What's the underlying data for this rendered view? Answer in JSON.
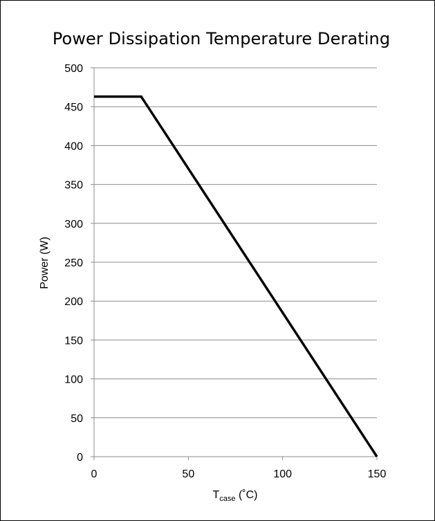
{
  "chart_data": {
    "type": "line",
    "title": "Power Dissipation Temperature Derating",
    "xlabel": {
      "main": "T",
      "sub": "case",
      "unit": " (˚C)"
    },
    "ylabel": "Power  (W)",
    "xlim": [
      0,
      150
    ],
    "ylim": [
      0,
      500
    ],
    "xticks": [
      0,
      50,
      100,
      150
    ],
    "yticks": [
      0,
      50,
      100,
      150,
      200,
      250,
      300,
      350,
      400,
      450,
      500
    ],
    "grid": {
      "y": true,
      "x": false
    },
    "series": [
      {
        "color": "#000000",
        "x": [
          0,
          25,
          150
        ],
        "y": [
          463,
          463,
          0
        ]
      }
    ]
  }
}
